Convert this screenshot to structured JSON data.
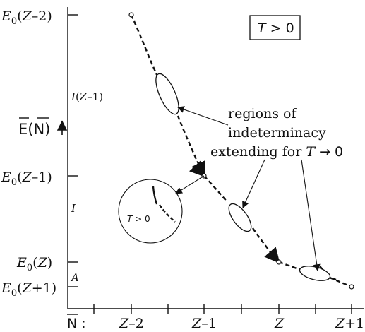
{
  "labels": {
    "e0_z_minus_2": "E0(Z–2)",
    "e0_z_minus_1": "E0(Z–1)",
    "e0_z": "E0(Z)",
    "e0_z_plus_1": "E0(Z+1)",
    "ionization_zm1": "I(Z–1)",
    "ionization": "I",
    "affinity": "A",
    "y_axis_label": "E(N)",
    "x_axis_label": "N",
    "x_axis_colon": ":",
    "condition_box": "T > 0",
    "inset_label": "T > 0"
  },
  "annotation": {
    "line1": "regions of",
    "line2": "indeterminacy",
    "line3": "extending for T → 0"
  },
  "x_ticks": [
    "Z–2",
    "Z–1",
    "Z",
    "Z+1"
  ]
}
